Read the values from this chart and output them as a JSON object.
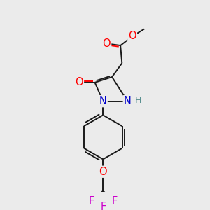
{
  "bg_color": "#ebebeb",
  "bond_color": "#1a1a1a",
  "atom_colors": {
    "O": "#ff0000",
    "N": "#0000cc",
    "F": "#cc00cc",
    "H": "#5a9090",
    "C": "#1a1a1a"
  },
  "font_size_atom": 10.5,
  "font_size_small": 9,
  "lw": 1.4
}
